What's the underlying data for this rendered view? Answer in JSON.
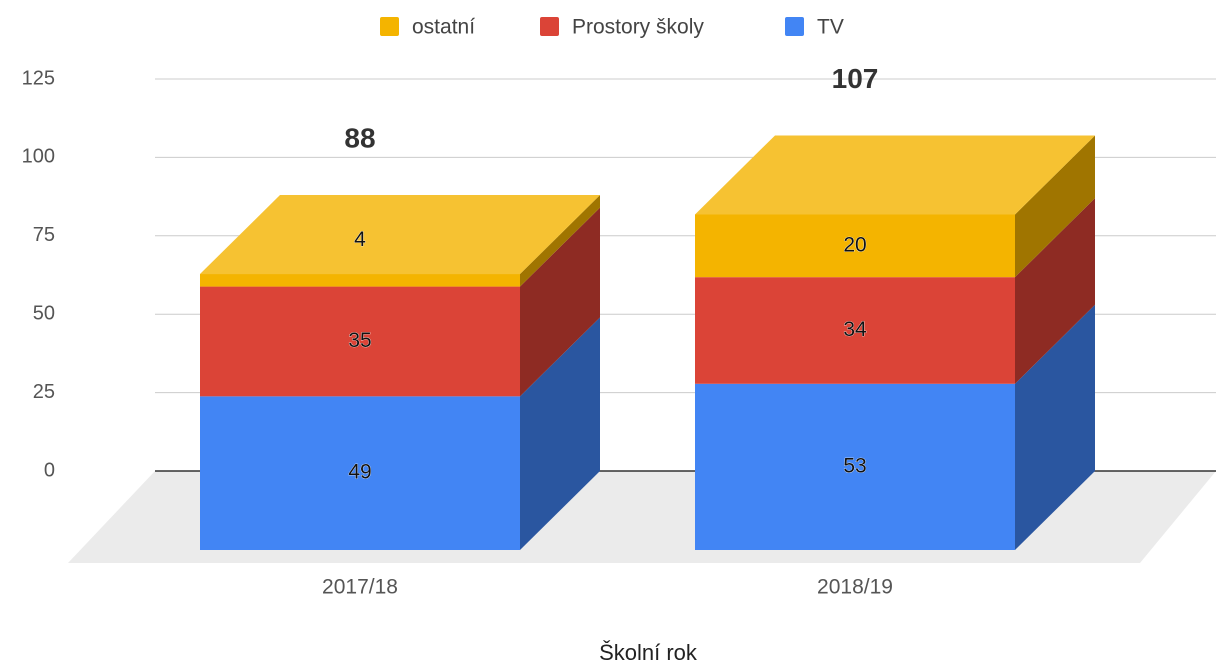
{
  "chart_data": {
    "type": "bar3d_stacked",
    "x_label": "Školní rok",
    "categories": [
      "2017/18",
      "2018/19"
    ],
    "series": [
      {
        "name": "TV",
        "color": "#4285f4",
        "side": "#2a56a0",
        "values": [
          49,
          53
        ]
      },
      {
        "name": "Prostory školy",
        "color": "#db4437",
        "side": "#8e2b23",
        "values": [
          35,
          34
        ]
      },
      {
        "name": "ostatní",
        "color": "#f4b400",
        "side": "#a07500",
        "top": "#f6c232",
        "values": [
          4,
          20
        ]
      }
    ],
    "totals": [
      88,
      107
    ],
    "ylim": [
      0,
      125
    ],
    "yticks": [
      0,
      25,
      50,
      75,
      100,
      125
    ],
    "grid": true
  }
}
